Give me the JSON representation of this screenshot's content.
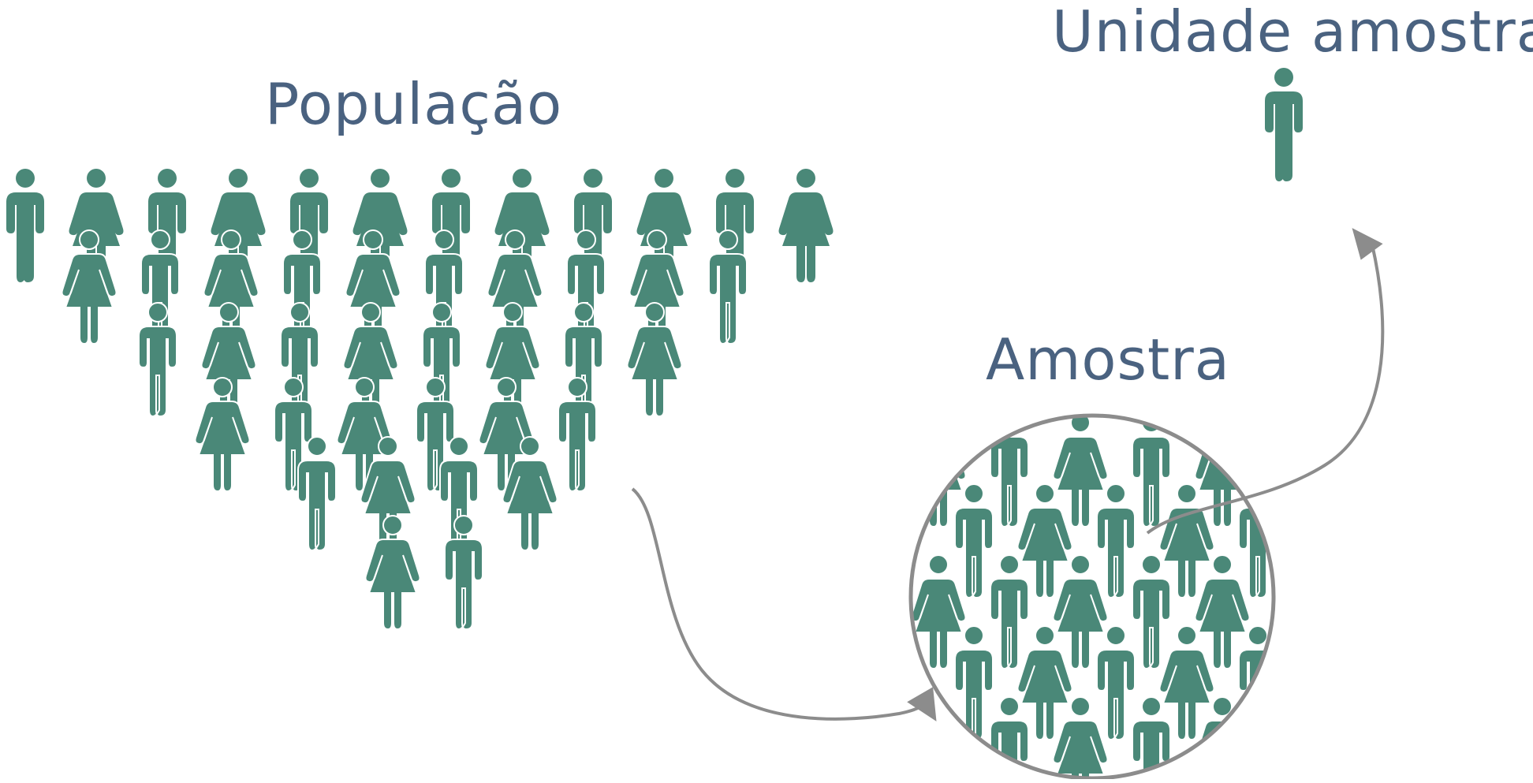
{
  "labels": {
    "population": "População",
    "sample": "Amostra",
    "sampling_unit": "Unidade amostral"
  },
  "colors": {
    "figure": "#4a8878",
    "label": "#4a6280",
    "arrow": "#8c8c8c",
    "background": "#ffffff"
  },
  "icons": {
    "person": "person-icon",
    "male": "male-person-icon",
    "female": "female-person-icon"
  }
}
